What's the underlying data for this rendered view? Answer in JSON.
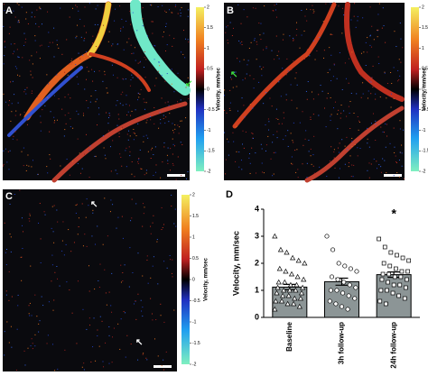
{
  "panels": [
    {
      "label": "A",
      "colorbar": {
        "label": "Velocity, mm/sec",
        "ticks": [
          2,
          1.5,
          1,
          0.5,
          0,
          -0.5,
          -1,
          -1.5,
          -2
        ]
      }
    },
    {
      "label": "B",
      "colorbar": {
        "label": "Velocity, mm/sec",
        "ticks": [
          2,
          1.5,
          1,
          0.5,
          0,
          -0.5,
          -1,
          -1.5,
          -2
        ]
      }
    },
    {
      "label": "C",
      "colorbar": {
        "label": "Velocity, mm/sec",
        "ticks": [
          2,
          1.5,
          1,
          0.5,
          0,
          -0.5,
          -1,
          -1.5,
          -2
        ]
      }
    }
  ],
  "chart_data": {
    "type": "bar",
    "label": "D",
    "ylabel": "Velocity, mm/sec",
    "categories": [
      "Baseline",
      "3h follow-up",
      "24h follow-up"
    ],
    "values": [
      1.12,
      1.32,
      1.58
    ],
    "errors": [
      0.1,
      0.13,
      0.1
    ],
    "color": "#8c9596",
    "points": [
      [
        3.0,
        2.5,
        2.4,
        2.2,
        2.1,
        2.0,
        1.8,
        1.7,
        1.6,
        1.5,
        1.4,
        1.3,
        1.3,
        1.2,
        1.2,
        1.1,
        1.1,
        1.0,
        1.0,
        1.0,
        0.9,
        0.9,
        0.8,
        0.8,
        0.7,
        0.7,
        0.6,
        0.6,
        0.5,
        0.5,
        0.4,
        0.3
      ],
      [
        3.0,
        2.5,
        2.0,
        1.9,
        1.8,
        1.7,
        1.5,
        1.4,
        1.3,
        1.2,
        1.1,
        1.0,
        1.0,
        0.9,
        0.8,
        0.7,
        0.6,
        0.5,
        0.4,
        0.3
      ],
      [
        2.9,
        2.6,
        2.4,
        2.3,
        2.2,
        2.1,
        2.0,
        1.9,
        1.8,
        1.7,
        1.7,
        1.6,
        1.6,
        1.5,
        1.5,
        1.4,
        1.4,
        1.3,
        1.2,
        1.2,
        1.1,
        1.0,
        1.0,
        0.9,
        0.8,
        0.7,
        0.6,
        0.5
      ]
    ],
    "markers": [
      "triangle",
      "circle",
      "square"
    ],
    "annotation": "*",
    "ylim": [
      0,
      4
    ],
    "yticks": [
      0,
      1,
      2,
      3,
      4
    ]
  }
}
